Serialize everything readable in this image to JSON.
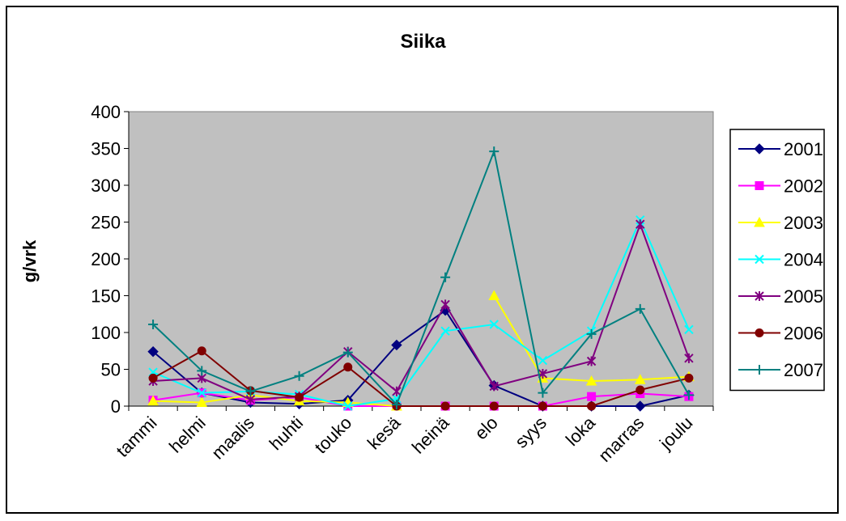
{
  "chart_data": {
    "type": "line",
    "title": "Siika",
    "xlabel": "",
    "ylabel": "g/vrk",
    "categories": [
      "tammi",
      "helmi",
      "maalis",
      "huhti",
      "touko",
      "kesä",
      "heinä",
      "elo",
      "syys",
      "loka",
      "marras",
      "joulu"
    ],
    "ylim": [
      0,
      400
    ],
    "yticks": [
      0,
      50,
      100,
      150,
      200,
      250,
      300,
      350,
      400
    ],
    "grid": false,
    "legend_position": "right",
    "series": [
      {
        "name": "2001",
        "color": "#000080",
        "marker": "diamond",
        "values": [
          74,
          18,
          5,
          3,
          8,
          83,
          130,
          28,
          0,
          0,
          0,
          15
        ]
      },
      {
        "name": "2002",
        "color": "#FF00FF",
        "marker": "square",
        "values": [
          8,
          18,
          8,
          12,
          0,
          0,
          0,
          0,
          0,
          13,
          17,
          13
        ]
      },
      {
        "name": "2003",
        "color": "#FFFF00",
        "marker": "triangle",
        "values": [
          7,
          5,
          15,
          7,
          5,
          0,
          null,
          150,
          38,
          34,
          36,
          40
        ]
      },
      {
        "name": "2004",
        "color": "#00FFFF",
        "marker": "x",
        "values": [
          46,
          18,
          20,
          16,
          0,
          10,
          102,
          111,
          62,
          102,
          253,
          104
        ]
      },
      {
        "name": "2005",
        "color": "#800080",
        "marker": "asterisk",
        "values": [
          34,
          38,
          9,
          13,
          74,
          20,
          138,
          27,
          44,
          61,
          247,
          65
        ]
      },
      {
        "name": "2006",
        "color": "#800000",
        "marker": "circle",
        "values": [
          38,
          75,
          21,
          12,
          53,
          0,
          0,
          0,
          0,
          0,
          22,
          38
        ]
      },
      {
        "name": "2007",
        "color": "#008080",
        "marker": "plus",
        "values": [
          111,
          48,
          20,
          41,
          73,
          2,
          175,
          346,
          18,
          98,
          132,
          15
        ]
      }
    ]
  }
}
